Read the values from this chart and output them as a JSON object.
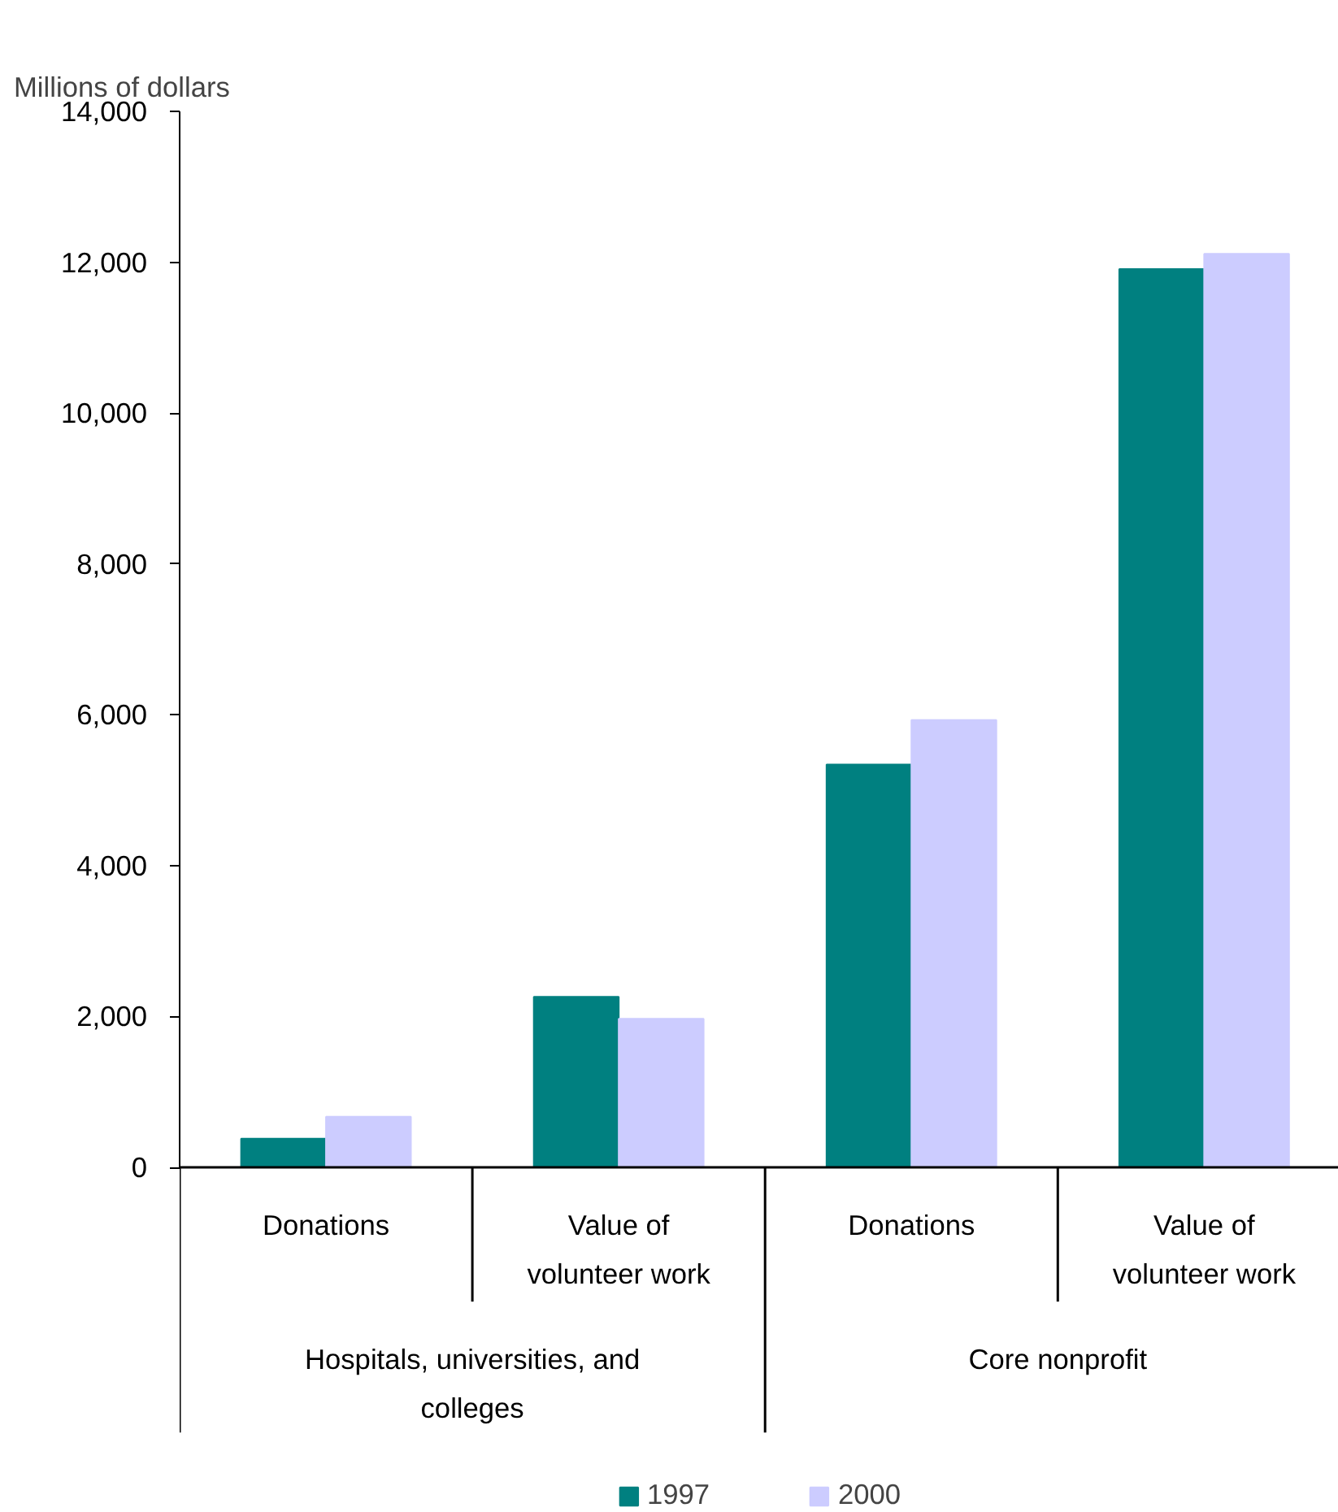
{
  "chart_data": {
    "type": "bar",
    "ylabel": "Millions of dollars",
    "categories": [
      "Donations",
      "Value of volunteer work",
      "Donations",
      "Value of volunteer work"
    ],
    "annotations": [
      "Hospitals, universities, and colleges",
      "Core nonprofit"
    ],
    "series": [
      {
        "name": "1997",
        "color": "#008080",
        "values": [
          380,
          2260,
          5340,
          11910
        ]
      },
      {
        "name": "2000",
        "color": "#ccccff",
        "values": [
          670,
          1970,
          5930,
          12110
        ]
      }
    ],
    "ylim": [
      0,
      14000
    ],
    "yticks": [
      {
        "value": 0,
        "label": "0"
      },
      {
        "value": 2000,
        "label": "2,000"
      },
      {
        "value": 4000,
        "label": "4,000"
      },
      {
        "value": 6000,
        "label": "6,000"
      },
      {
        "value": 8000,
        "label": "8,000"
      },
      {
        "value": 10000,
        "label": "10,000"
      },
      {
        "value": 12000,
        "label": "12,000"
      },
      {
        "value": 14000,
        "label": "14,000"
      }
    ],
    "grid": false,
    "legend": "bottom"
  }
}
